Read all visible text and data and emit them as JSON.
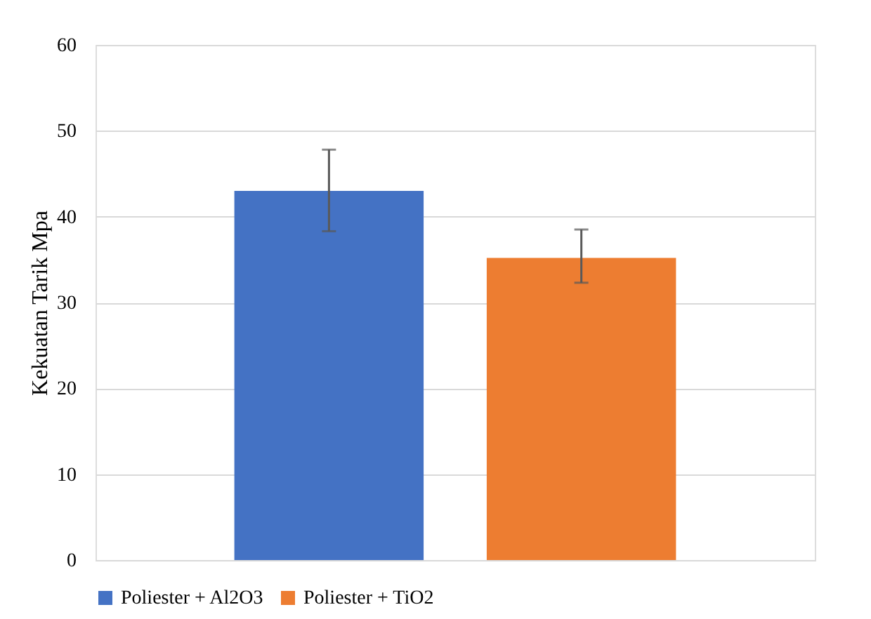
{
  "chart_data": {
    "type": "bar",
    "ylabel": "Kekuatan Tarik Mpa",
    "categories": [
      null
    ],
    "series": [
      {
        "name": "Poliester + Al2O3",
        "color": "#4472c4",
        "values": [
          43
        ],
        "errors": [
          [
            38.3,
            47.8
          ]
        ]
      },
      {
        "name": "Poliester + TiO2",
        "color": "#ed7d31",
        "values": [
          35.2
        ],
        "errors": [
          [
            32.3,
            38.5
          ]
        ]
      }
    ],
    "ylim": [
      0,
      60
    ],
    "yticks": [
      0,
      10,
      20,
      30,
      40,
      50,
      60
    ],
    "grid": "y",
    "legend": "bottom"
  }
}
